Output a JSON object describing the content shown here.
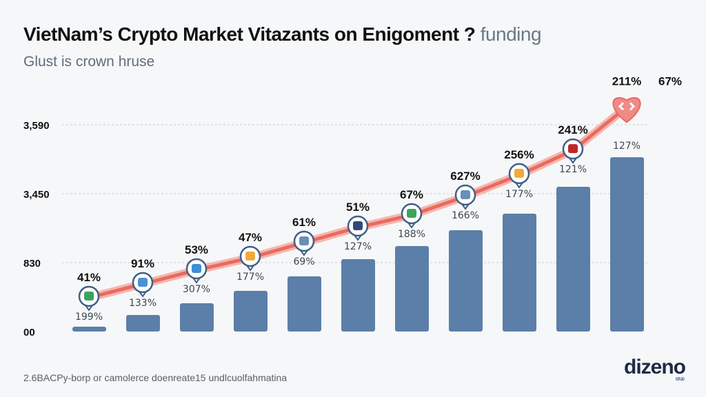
{
  "title": {
    "main": "VietNam’s Crypto Market Vitazants on Enigoment ?",
    "faint": "funding"
  },
  "subtitle": "Glust is crown hruse",
  "footer": "2.6BACPy-borp or camolerce doenreate15 undlcuolfahmatina",
  "logo": {
    "text": "dizeno",
    "sub": "STUD"
  },
  "colors": {
    "bar": "#5b7fa8",
    "line": "#ea6a5f",
    "grid": "#c9ced4",
    "background": "#f6f7f8"
  },
  "chart_data": {
    "type": "bar",
    "title": "VietNam’s Crypto Market Vitazants on Enigoment ? funding",
    "yticks": [
      {
        "value": 0,
        "label": "00"
      },
      {
        "value": 830,
        "label": "830"
      },
      {
        "value": 3450,
        "label": "3,450"
      },
      {
        "value": 3590,
        "label": "3,590"
      }
    ],
    "grid": true,
    "bars": {
      "values": [
        58,
        199,
        340,
        490,
        664,
        961,
        1459,
        2062,
        2690,
        3464,
        3524
      ],
      "labels": [
        "199%",
        "133%",
        "307%",
        "177%",
        "69%",
        "127%",
        "188%",
        "166%",
        "177%",
        "121%",
        "127%"
      ]
    },
    "line": {
      "values": [
        407,
        573,
        739,
        1013,
        1590,
        2166,
        2638,
        3345,
        3488,
        3538,
        3626
      ],
      "labels": [
        "41%",
        "91%",
        "53%",
        "47%",
        "61%",
        "51%",
        "67%",
        "627%",
        "256%",
        "241%",
        "211%"
      ],
      "icons": [
        "shield-icon",
        "chart-card-icon",
        "monitor-icon",
        "bottle-icon",
        "ship-icon",
        "gem-icon",
        "tree-icon",
        "antenna-icon",
        "coins-icon",
        "flag-icon",
        "heart-icon"
      ]
    },
    "extra_label": "67%"
  }
}
